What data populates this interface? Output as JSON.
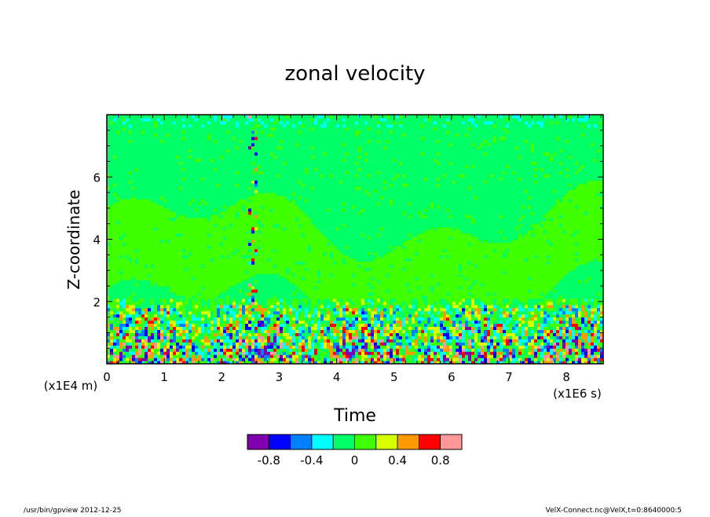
{
  "chart_data": {
    "type": "heatmap",
    "title": "zonal velocity",
    "xlabel": "Time",
    "ylabel": "Z-coordinate",
    "x_unit": "(x1E6 s)",
    "y_unit": "(x1E4 m)",
    "xlim": [
      0,
      8.64
    ],
    "ylim": [
      0,
      8
    ],
    "x_ticks": [
      "0",
      "1",
      "2",
      "3",
      "4",
      "5",
      "6",
      "7",
      "8"
    ],
    "y_ticks": [
      "2",
      "4",
      "6"
    ],
    "colorbar": {
      "levels": [
        -1.0,
        -0.8,
        -0.6,
        -0.4,
        -0.2,
        0,
        0.2,
        0.4,
        0.6,
        0.8,
        1.0
      ],
      "labels": [
        "-0.8",
        "-0.4",
        "0",
        "0.4",
        "0.8"
      ],
      "label_values": [
        -0.8,
        -0.4,
        0,
        0.4,
        0.8
      ],
      "colors": [
        "#8000b0",
        "#0000ff",
        "#0080ff",
        "#00ffff",
        "#00ff66",
        "#40ff00",
        "#d8ff00",
        "#ff9900",
        "#ff0000",
        "#ff9999"
      ]
    },
    "regions": [
      {
        "description": "upper layer",
        "z_range": [
          2.1,
          8
        ],
        "value_range": [
          -0.1,
          0.1
        ],
        "colors": [
          "#00ff66",
          "#40ff00"
        ]
      },
      {
        "description": "lower turbulent layer",
        "z_range": [
          0,
          2.1
        ],
        "value_range": [
          -1.0,
          1.0
        ]
      }
    ]
  },
  "footer": {
    "left": "/usr/bin/gpview   2012-12-25",
    "right": "VelX-Connect.nc@VelX,t=0:8640000:5"
  }
}
